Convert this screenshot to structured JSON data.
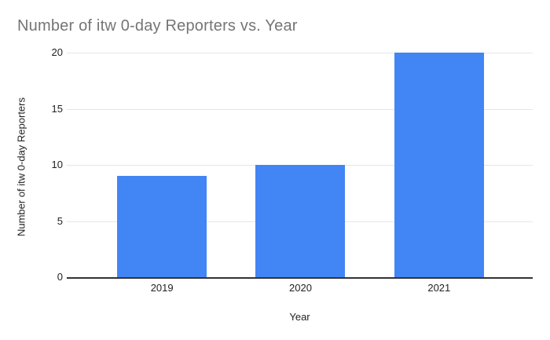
{
  "chart_data": {
    "type": "bar",
    "title": "Number of itw 0-day Reporters vs. Year",
    "xlabel": "Year",
    "ylabel": "Number of itw 0-day Reporters",
    "categories": [
      "2019",
      "2020",
      "2021"
    ],
    "values": [
      9,
      10,
      20
    ],
    "yticks": [
      0,
      5,
      10,
      15,
      20
    ],
    "ylim": [
      0,
      20
    ],
    "grid": "on",
    "legend": "none",
    "colors": {
      "bar": "#4285f4",
      "title": "#757575",
      "tick_label": "#222222",
      "axis_title": "#222222",
      "gridline": "#e6e6e6",
      "baseline": "#333333",
      "background": "#ffffff"
    }
  }
}
